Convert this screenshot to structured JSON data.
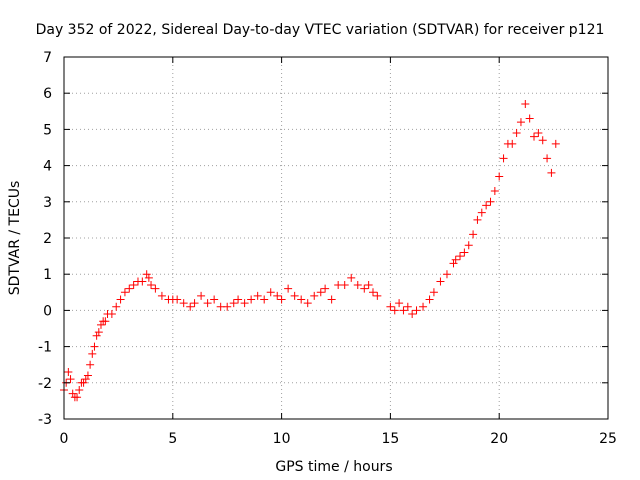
{
  "chart_data": {
    "type": "scatter",
    "title": "Day 352 of 2022, Sidereal Day-to-day VTEC variation (SDTVAR) for receiver p121",
    "xlabel": "GPS time / hours",
    "ylabel": "SDTVAR / TECUs",
    "xlim": [
      0,
      25
    ],
    "ylim": [
      -3,
      7
    ],
    "xticks": [
      "0",
      "5",
      "10",
      "15",
      "20",
      "25"
    ],
    "yticks": [
      "-3",
      "-2",
      "-1",
      "0",
      "1",
      "2",
      "3",
      "4",
      "5",
      "6",
      "7"
    ],
    "grid": true,
    "marker": "+",
    "color": "#ff0000",
    "series": [
      {
        "name": "SDTVAR",
        "x": [
          0.0,
          0.1,
          0.2,
          0.3,
          0.4,
          0.5,
          0.6,
          0.7,
          0.8,
          0.9,
          1.0,
          1.1,
          1.2,
          1.3,
          1.4,
          1.5,
          1.6,
          1.7,
          1.8,
          1.9,
          2.0,
          2.2,
          2.4,
          2.6,
          2.8,
          3.0,
          3.2,
          3.4,
          3.6,
          3.8,
          3.9,
          4.0,
          4.2,
          4.5,
          4.8,
          5.0,
          5.2,
          5.5,
          5.8,
          6.0,
          6.3,
          6.6,
          6.9,
          7.2,
          7.5,
          7.8,
          8.0,
          8.3,
          8.6,
          8.9,
          9.2,
          9.5,
          9.8,
          10.0,
          10.3,
          10.6,
          10.9,
          11.2,
          11.5,
          11.8,
          12.0,
          12.3,
          12.6,
          12.9,
          13.2,
          13.5,
          13.8,
          14.0,
          14.2,
          14.4,
          15.0,
          15.2,
          15.4,
          15.6,
          15.8,
          16.0,
          16.2,
          16.5,
          16.8,
          17.0,
          17.3,
          17.6,
          17.9,
          18.0,
          18.2,
          18.4,
          18.6,
          18.8,
          19.0,
          19.2,
          19.4,
          19.6,
          19.8,
          20.0,
          20.2,
          20.4,
          20.6,
          20.8,
          21.0,
          21.2,
          21.4,
          21.6,
          21.8,
          22.0,
          22.2,
          22.4,
          22.6
        ],
        "y": [
          -2.2,
          -2.0,
          -1.7,
          -1.9,
          -2.3,
          -2.4,
          -2.4,
          -2.2,
          -2.0,
          -2.0,
          -1.9,
          -1.8,
          -1.5,
          -1.2,
          -1.0,
          -0.7,
          -0.6,
          -0.4,
          -0.3,
          -0.3,
          -0.1,
          -0.1,
          0.1,
          0.3,
          0.5,
          0.6,
          0.7,
          0.8,
          0.8,
          1.0,
          0.9,
          0.7,
          0.6,
          0.4,
          0.3,
          0.3,
          0.3,
          0.2,
          0.1,
          0.2,
          0.4,
          0.2,
          0.3,
          0.1,
          0.1,
          0.2,
          0.3,
          0.2,
          0.3,
          0.4,
          0.3,
          0.5,
          0.4,
          0.3,
          0.6,
          0.4,
          0.3,
          0.2,
          0.4,
          0.5,
          0.6,
          0.3,
          0.7,
          0.7,
          0.9,
          0.7,
          0.6,
          0.7,
          0.5,
          0.4,
          0.1,
          0.0,
          0.2,
          0.0,
          0.1,
          -0.1,
          0.0,
          0.1,
          0.3,
          0.5,
          0.8,
          1.0,
          1.3,
          1.4,
          1.5,
          1.6,
          1.8,
          2.1,
          2.5,
          2.7,
          2.9,
          3.0,
          3.3,
          3.7,
          4.2,
          4.6,
          4.6,
          4.9,
          5.2,
          5.7,
          5.3,
          4.8,
          4.9,
          4.7,
          4.2,
          3.8,
          4.6
        ]
      }
    ]
  }
}
